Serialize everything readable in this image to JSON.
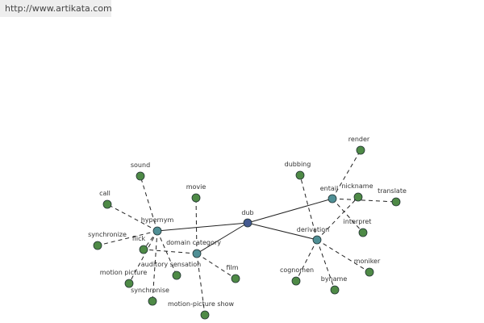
{
  "header": {
    "url": "http://www.artikata.com"
  },
  "nodes": [
    {
      "label": "dub"
    },
    {
      "label": "hypernym"
    },
    {
      "label": "domain category"
    },
    {
      "label": "entail"
    },
    {
      "label": "derivation"
    },
    {
      "label": "sound"
    },
    {
      "label": "call"
    },
    {
      "label": "synchronize"
    },
    {
      "label": "flick"
    },
    {
      "label": "motion picture"
    },
    {
      "label": "synchronise"
    },
    {
      "label": "auditory sensation"
    },
    {
      "label": "movie"
    },
    {
      "label": "film"
    },
    {
      "label": "motion-picture show"
    },
    {
      "label": "dubbing"
    },
    {
      "label": "render"
    },
    {
      "label": "nickname"
    },
    {
      "label": "translate"
    },
    {
      "label": "interpret"
    },
    {
      "label": "moniker"
    },
    {
      "label": "cognomen"
    },
    {
      "label": "byname"
    }
  ]
}
